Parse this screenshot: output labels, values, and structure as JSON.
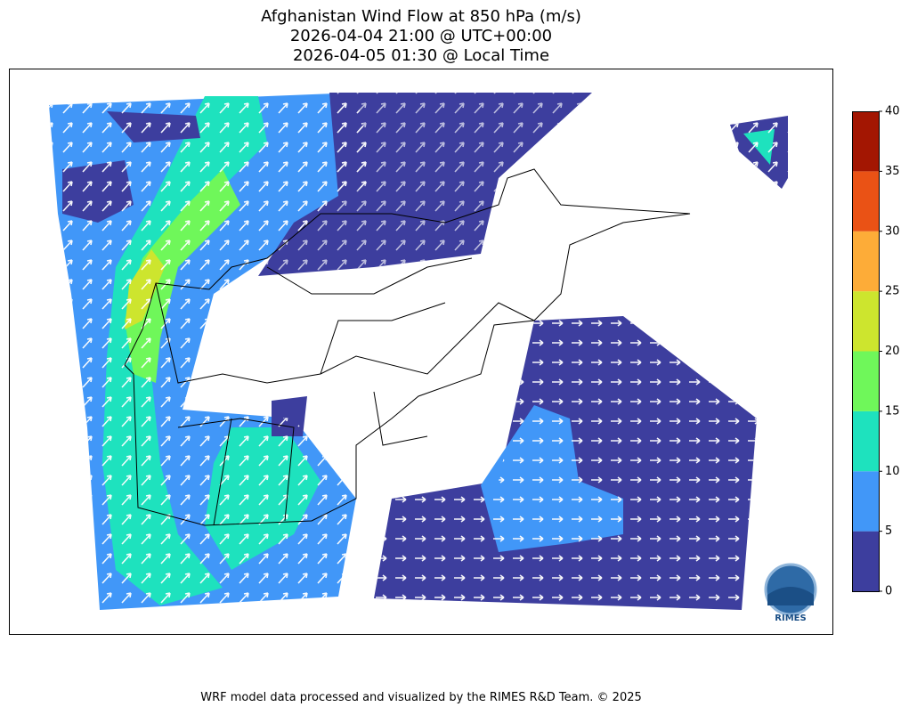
{
  "title": [
    "Afghanistan Wind Flow at 850 hPa (m/s)",
    "2026-04-04 21:00 @ UTC+00:00",
    "2026-04-05 01:30 @ Local Time"
  ],
  "colorbar": {
    "levels": [
      0,
      5,
      10,
      15,
      20,
      25,
      30,
      35,
      40
    ],
    "colors": [
      "#3d3e9e",
      "#4197f8",
      "#1ee2be",
      "#6ff75a",
      "#cde52e",
      "#fdac38",
      "#ea5215",
      "#a31602"
    ]
  },
  "logo": "RIMES",
  "footer": "WRF model data processed and visualized by the RIMES R&D Team. © 2025"
}
